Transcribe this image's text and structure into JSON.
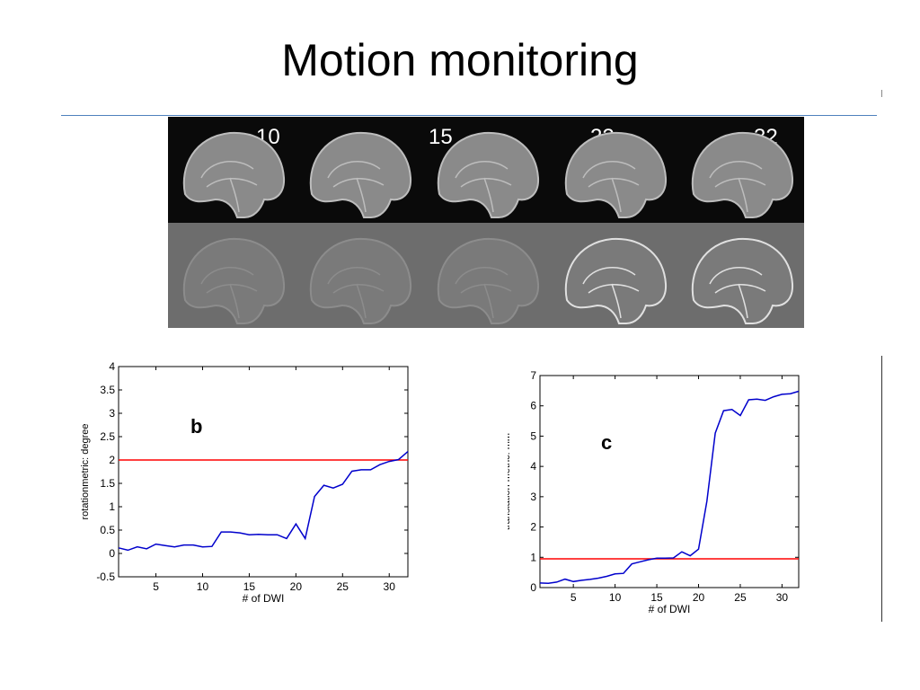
{
  "slide": {
    "title": "Motion monitoring"
  },
  "mri": {
    "labels": [
      "10",
      "15",
      "22",
      "32"
    ],
    "slice_count": 5
  },
  "colors": {
    "series": "#0000cc",
    "threshold": "#ff0000",
    "rule": "#4f81bd"
  },
  "chart_data": [
    {
      "type": "line",
      "panel_label": "b",
      "xlabel": "# of DWI",
      "ylabel": "rotationmetric: degree",
      "xlim": [
        1,
        32
      ],
      "ylim": [
        -0.5,
        4
      ],
      "xticks": [
        5,
        10,
        15,
        20,
        25,
        30
      ],
      "yticks": [
        -0.5,
        0,
        0.5,
        1,
        1.5,
        2,
        2.5,
        3,
        3.5,
        4
      ],
      "ytick_labels": [
        "-0.5",
        "0",
        "0.5",
        "1",
        "1.5",
        "2",
        "2.5",
        "3",
        "3.5",
        "4"
      ],
      "threshold": 2,
      "x": [
        1,
        2,
        3,
        4,
        5,
        6,
        7,
        8,
        9,
        10,
        11,
        12,
        13,
        14,
        15,
        16,
        17,
        18,
        19,
        20,
        21,
        22,
        23,
        24,
        25,
        26,
        27,
        28,
        29,
        30,
        31,
        32
      ],
      "values": [
        0.12,
        0.07,
        0.14,
        0.1,
        0.2,
        0.17,
        0.14,
        0.18,
        0.18,
        0.14,
        0.15,
        0.46,
        0.46,
        0.44,
        0.4,
        0.41,
        0.4,
        0.4,
        0.32,
        0.63,
        0.32,
        1.22,
        1.46,
        1.4,
        1.48,
        1.76,
        1.79,
        1.79,
        1.9,
        1.97,
        2.01,
        2.18
      ]
    },
    {
      "type": "line",
      "panel_label": "c",
      "xlabel": "# of DWI",
      "ylabel": "translation metric: mm",
      "xlim": [
        1,
        32
      ],
      "ylim": [
        0,
        7
      ],
      "xticks": [
        5,
        10,
        15,
        20,
        25,
        30
      ],
      "yticks": [
        0,
        1,
        2,
        3,
        4,
        5,
        6,
        7
      ],
      "ytick_labels": [
        "0",
        "1",
        "2",
        "3",
        "4",
        "5",
        "6",
        "7"
      ],
      "threshold": 0.95,
      "x": [
        1,
        2,
        3,
        4,
        5,
        6,
        7,
        8,
        9,
        10,
        11,
        12,
        13,
        14,
        15,
        16,
        17,
        18,
        19,
        20,
        21,
        22,
        23,
        24,
        25,
        26,
        27,
        28,
        29,
        30,
        31,
        32
      ],
      "values": [
        0.15,
        0.14,
        0.18,
        0.28,
        0.2,
        0.24,
        0.27,
        0.31,
        0.37,
        0.45,
        0.47,
        0.78,
        0.85,
        0.92,
        0.97,
        0.97,
        0.98,
        1.18,
        1.05,
        1.27,
        2.85,
        5.1,
        5.84,
        5.88,
        5.68,
        6.2,
        6.22,
        6.18,
        6.3,
        6.38,
        6.4,
        6.48
      ]
    }
  ]
}
